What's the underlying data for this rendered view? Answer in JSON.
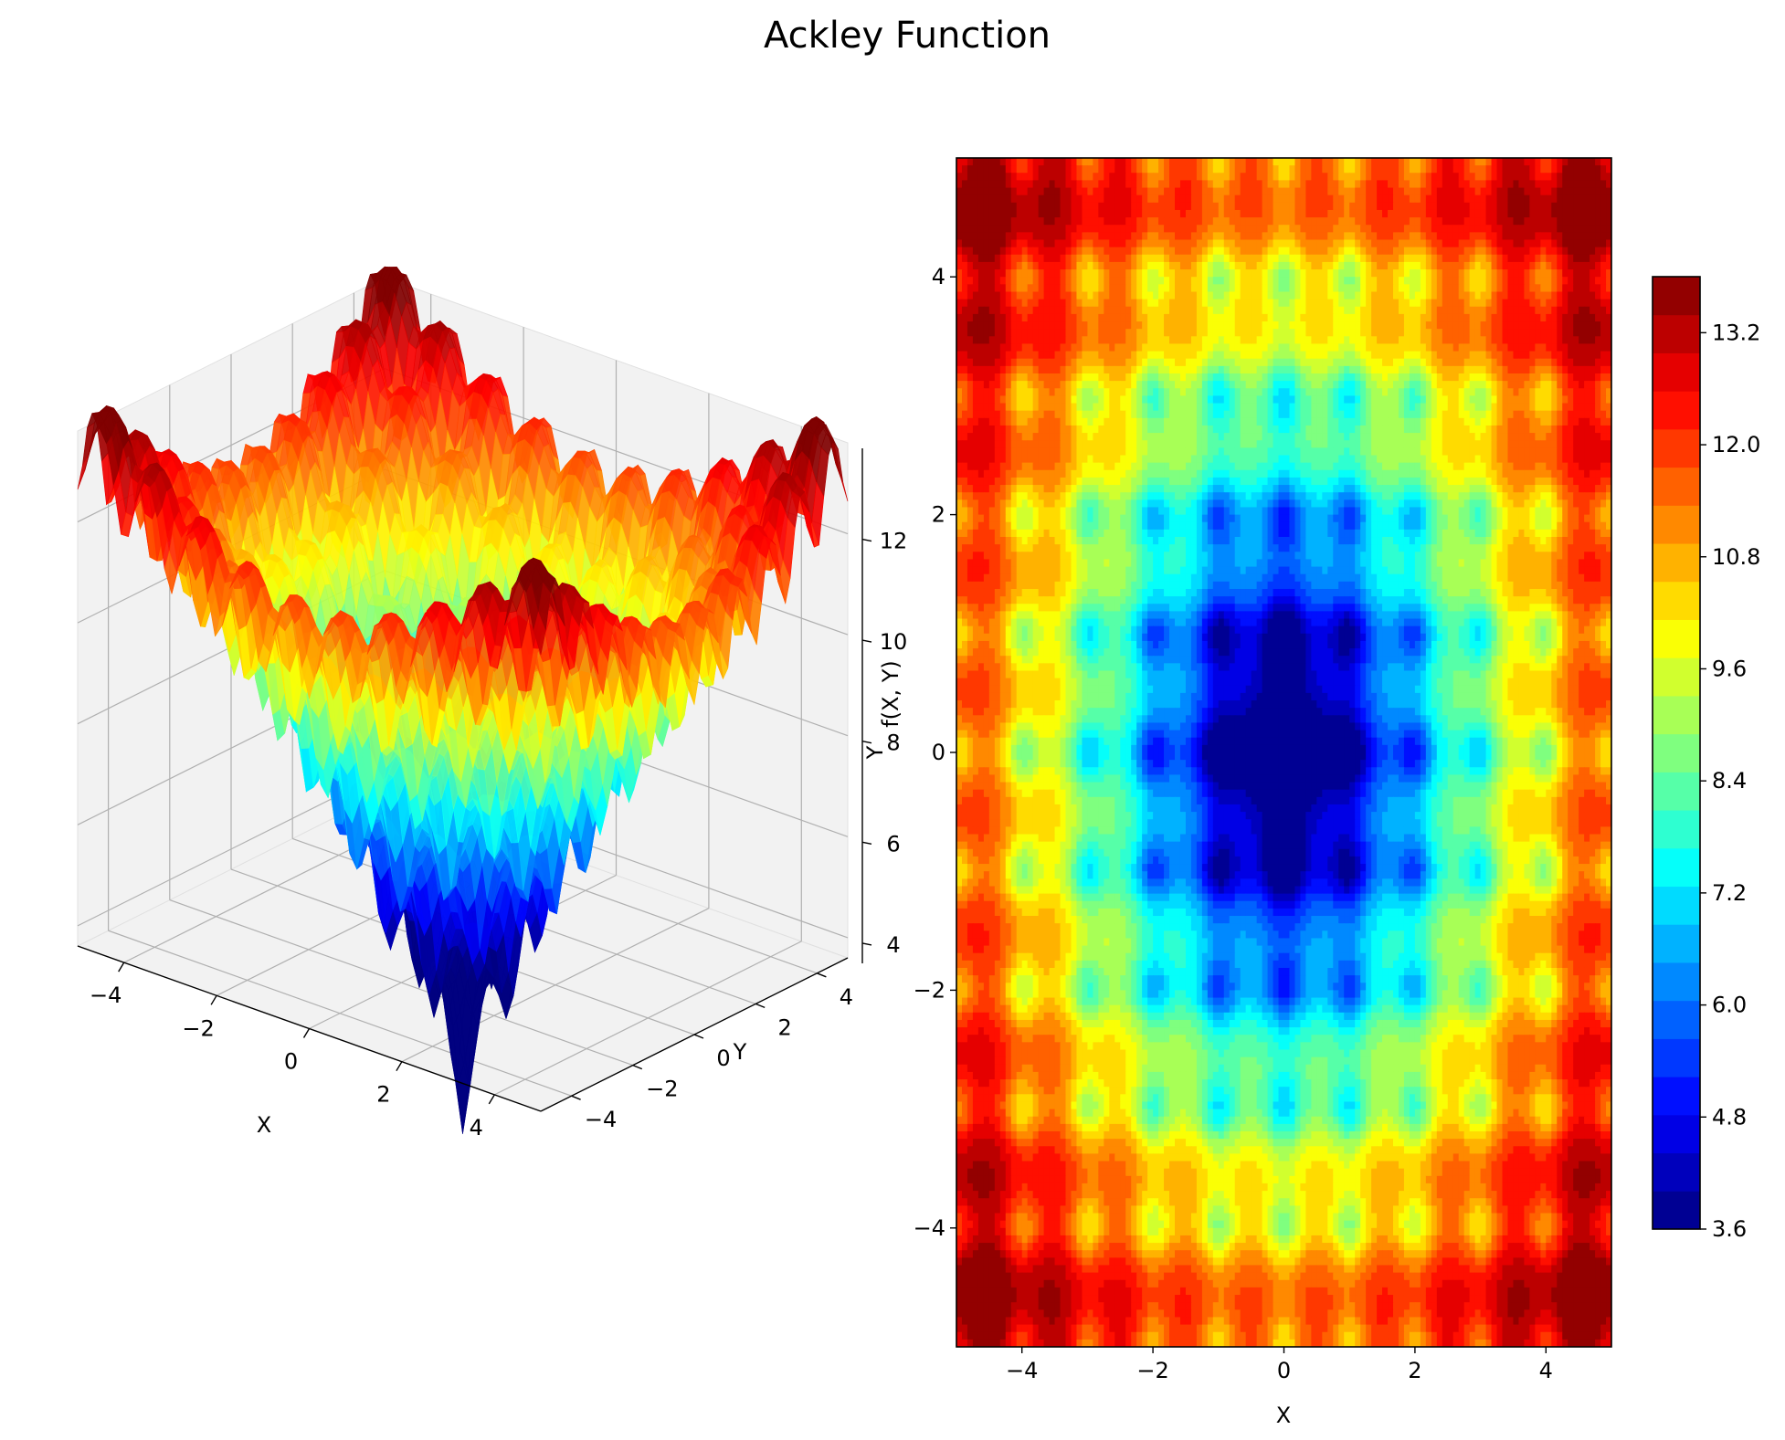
{
  "figure": {
    "title": "Ackley Function",
    "colormap": "jet",
    "colormap_stops": [
      "#00007f",
      "#0000ff",
      "#007fff",
      "#00ffff",
      "#7fff7f",
      "#ffff00",
      "#ff7f00",
      "#ff0000",
      "#7f0000"
    ]
  },
  "chart_data": [
    {
      "type": "surface",
      "title": "",
      "function": "Ackley",
      "xlabel": "X",
      "ylabel": "Y",
      "zlabel": "f(X, Y)",
      "xlim": [
        -5,
        5
      ],
      "ylim": [
        -5,
        5
      ],
      "zlim": [
        3.6,
        13.8
      ],
      "x_ticks": [
        "−4",
        "−2",
        "0",
        "2",
        "4"
      ],
      "y_ticks": [
        "−4",
        "−2",
        "0",
        "2",
        "4"
      ],
      "z_ticks": [
        "4",
        "6",
        "8",
        "10",
        "12"
      ],
      "grid": true,
      "colormap": "jet"
    },
    {
      "type": "heatmap",
      "subtype": "filled-contour",
      "title": "",
      "function": "Ackley",
      "xlabel": "X",
      "ylabel": "Y",
      "xlim": [
        -5,
        5
      ],
      "ylim": [
        -5,
        5
      ],
      "x_ticks": [
        "−4",
        "−2",
        "0",
        "2",
        "4"
      ],
      "y_ticks": [
        "−4",
        "−2",
        "0",
        "2",
        "4"
      ],
      "colorbar": {
        "range": [
          3.6,
          13.8
        ],
        "levels": 25,
        "ticks": [
          "3.6",
          "4.8",
          "6.0",
          "7.2",
          "8.4",
          "9.6",
          "10.8",
          "12.0",
          "13.2"
        ]
      },
      "colormap": "jet"
    }
  ]
}
